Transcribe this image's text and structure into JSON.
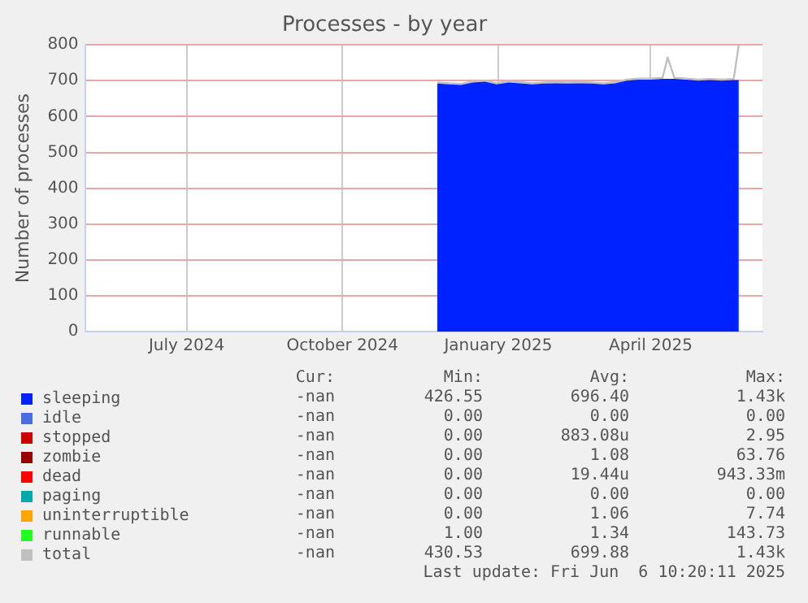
{
  "chart_data": {
    "type": "area",
    "title": "Processes - by year",
    "ylabel": "Number of processes",
    "legend": "bottom",
    "grid": true,
    "x": [
      "2024-11-26",
      "2024-12-03",
      "2024-12-10",
      "2024-12-17",
      "2024-12-24",
      "2024-12-31",
      "2025-01-07",
      "2025-01-14",
      "2025-01-21",
      "2025-01-28",
      "2025-02-04",
      "2025-02-11",
      "2025-02-18",
      "2025-02-25",
      "2025-03-04",
      "2025-03-11",
      "2025-03-18",
      "2025-03-25",
      "2025-04-01",
      "2025-04-08",
      "2025-04-11",
      "2025-04-15",
      "2025-04-22",
      "2025-04-29",
      "2025-05-06",
      "2025-05-13",
      "2025-05-20",
      "2025-05-23"
    ],
    "series": [
      {
        "name": "sleeping",
        "color": "#0022ff",
        "values": [
          692,
          690,
          688,
          695,
          697,
          690,
          695,
          693,
          690,
          692,
          693,
          692,
          693,
          692,
          690,
          693,
          700,
          703,
          703,
          705,
          705,
          705,
          703,
          700,
          702,
          700,
          702,
          702
        ]
      },
      {
        "name": "idle",
        "color": "#4a6ee0",
        "values": [
          null,
          null,
          null,
          null,
          null,
          null,
          null,
          null,
          null,
          null,
          null,
          null,
          null,
          null,
          null,
          null,
          null,
          null,
          null,
          null,
          null,
          null,
          null,
          null,
          null,
          null,
          null,
          null
        ]
      },
      {
        "name": "stopped",
        "color": "#cc0000",
        "values": [
          null,
          null,
          null,
          null,
          null,
          null,
          null,
          null,
          null,
          null,
          null,
          null,
          null,
          null,
          null,
          null,
          null,
          null,
          null,
          null,
          null,
          null,
          null,
          null,
          null,
          null,
          null,
          null
        ]
      },
      {
        "name": "zombie",
        "color": "#990000",
        "values": [
          null,
          null,
          null,
          null,
          null,
          null,
          null,
          null,
          null,
          null,
          null,
          null,
          null,
          null,
          null,
          null,
          null,
          null,
          null,
          null,
          null,
          null,
          null,
          null,
          null,
          null,
          null,
          null
        ]
      },
      {
        "name": "dead",
        "color": "#ff0000",
        "values": [
          null,
          null,
          null,
          null,
          null,
          null,
          null,
          null,
          null,
          null,
          null,
          null,
          null,
          null,
          null,
          null,
          null,
          null,
          null,
          null,
          null,
          null,
          null,
          null,
          null,
          null,
          null,
          null
        ]
      },
      {
        "name": "paging",
        "color": "#00aaaa",
        "values": [
          null,
          null,
          null,
          null,
          null,
          null,
          null,
          null,
          null,
          null,
          null,
          null,
          null,
          null,
          null,
          null,
          null,
          null,
          null,
          null,
          null,
          null,
          null,
          null,
          null,
          null,
          null,
          null
        ]
      },
      {
        "name": "uninterruptible",
        "color": "#ffa500",
        "values": [
          null,
          null,
          null,
          null,
          null,
          null,
          null,
          null,
          null,
          null,
          null,
          null,
          null,
          null,
          null,
          null,
          null,
          null,
          null,
          null,
          null,
          null,
          null,
          null,
          null,
          null,
          null,
          null
        ]
      },
      {
        "name": "runnable",
        "color": "#22ff22",
        "values": [
          null,
          null,
          null,
          null,
          null,
          null,
          null,
          null,
          null,
          null,
          null,
          null,
          null,
          null,
          null,
          null,
          null,
          null,
          null,
          null,
          null,
          null,
          null,
          null,
          null,
          null,
          null,
          null
        ]
      },
      {
        "name": "total",
        "color": "#c0c0c0",
        "type": "line",
        "values": [
          695,
          693,
          691,
          698,
          700,
          693,
          698,
          696,
          693,
          695,
          696,
          695,
          696,
          695,
          693,
          696,
          703,
          706,
          706,
          708,
          765,
          708,
          706,
          703,
          705,
          703,
          705,
          800
        ]
      }
    ],
    "xlim": [
      "2024-05-02",
      "2025-06-06"
    ],
    "xticks": [
      {
        "value": "2024-07-01",
        "label": "July 2024"
      },
      {
        "value": "2024-10-01",
        "label": "October 2024"
      },
      {
        "value": "2025-01-01",
        "label": "January 2025"
      },
      {
        "value": "2025-04-01",
        "label": "April 2025"
      }
    ],
    "ylim": [
      0,
      800
    ],
    "yticks": [
      0,
      100,
      200,
      300,
      400,
      500,
      600,
      700,
      800
    ],
    "annotations": [
      "Cur:",
      "Min:",
      "Avg:",
      "Max:",
      "-nan",
      "426.55",
      "696.40",
      "1.43k",
      "-nan",
      "0.00",
      "0.00",
      "0.00",
      "-nan",
      "0.00",
      "883.08u",
      "2.95",
      "-nan",
      "0.00",
      "1.08",
      "63.76",
      "-nan",
      "0.00",
      "19.44u",
      "943.33m",
      "-nan",
      "0.00",
      "0.00",
      "0.00",
      "-nan",
      "0.00",
      "1.06",
      "7.74",
      "-nan",
      "1.00",
      "1.34",
      "143.73",
      "-nan",
      "430.53",
      "699.88",
      "1.43k",
      "Last update: Fri Jun  6 10:20:11 2025"
    ]
  }
}
